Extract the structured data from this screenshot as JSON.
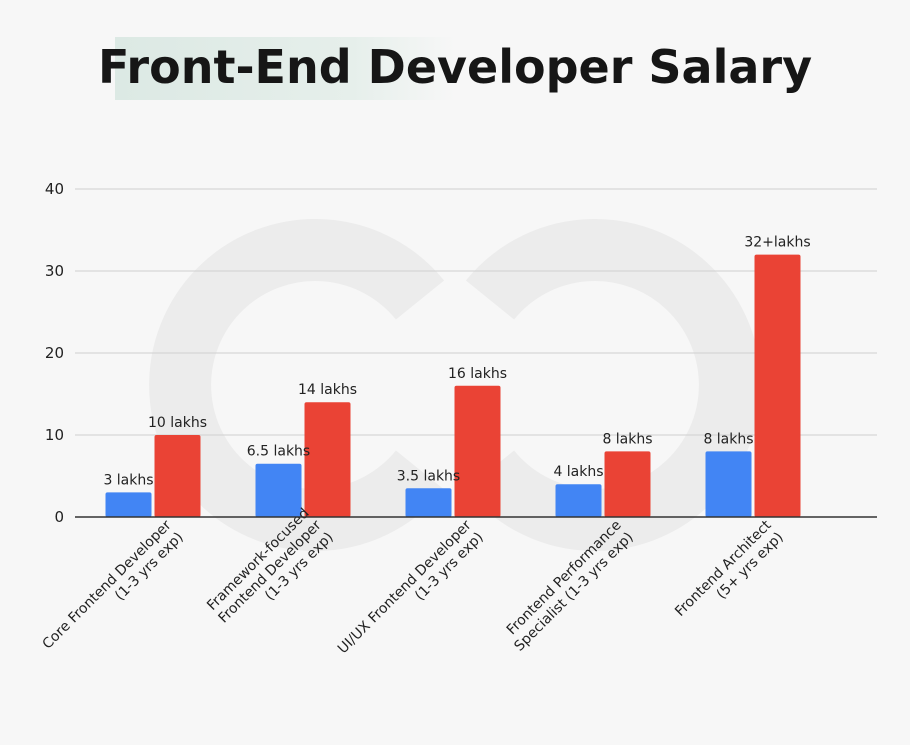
{
  "chart_data": {
    "type": "bar",
    "title": "Front-End Developer Salary",
    "xlabel": "",
    "ylabel": "",
    "ylim": [
      0,
      40
    ],
    "yticks": [
      0,
      10,
      20,
      30,
      40
    ],
    "categories": [
      [
        "Core Frontend Developer",
        "(1-3 yrs exp)"
      ],
      [
        "Framework-focused",
        "Frontend Developer",
        "(1-3 yrs exp)"
      ],
      [
        "UI/UX Frontend Developer",
        "(1-3 yrs exp)"
      ],
      [
        "Frontend Performance",
        "Specialist (1-3 yrs exp)"
      ],
      [
        "Frontend Architect",
        "(5+ yrs exp)"
      ]
    ],
    "series": [
      {
        "name": "series-1",
        "color": "#4285f4",
        "values": [
          3,
          6.5,
          3.5,
          4,
          8
        ],
        "labels": [
          "3 lakhs",
          "6.5 lakhs",
          "3.5 lakhs",
          "4 lakhs",
          "8 lakhs"
        ]
      },
      {
        "name": "series-2",
        "color": "#ea4335",
        "values": [
          10,
          14,
          16,
          8,
          32
        ],
        "labels": [
          "10 lakhs",
          "14 lakhs",
          "16 lakhs",
          "8 lakhs",
          "32+lakhs"
        ]
      }
    ],
    "grid": true,
    "legend": "none"
  },
  "colors": {
    "gridline": "#cfcfcf",
    "baseline": "#333333",
    "watermark": "#ececec"
  }
}
